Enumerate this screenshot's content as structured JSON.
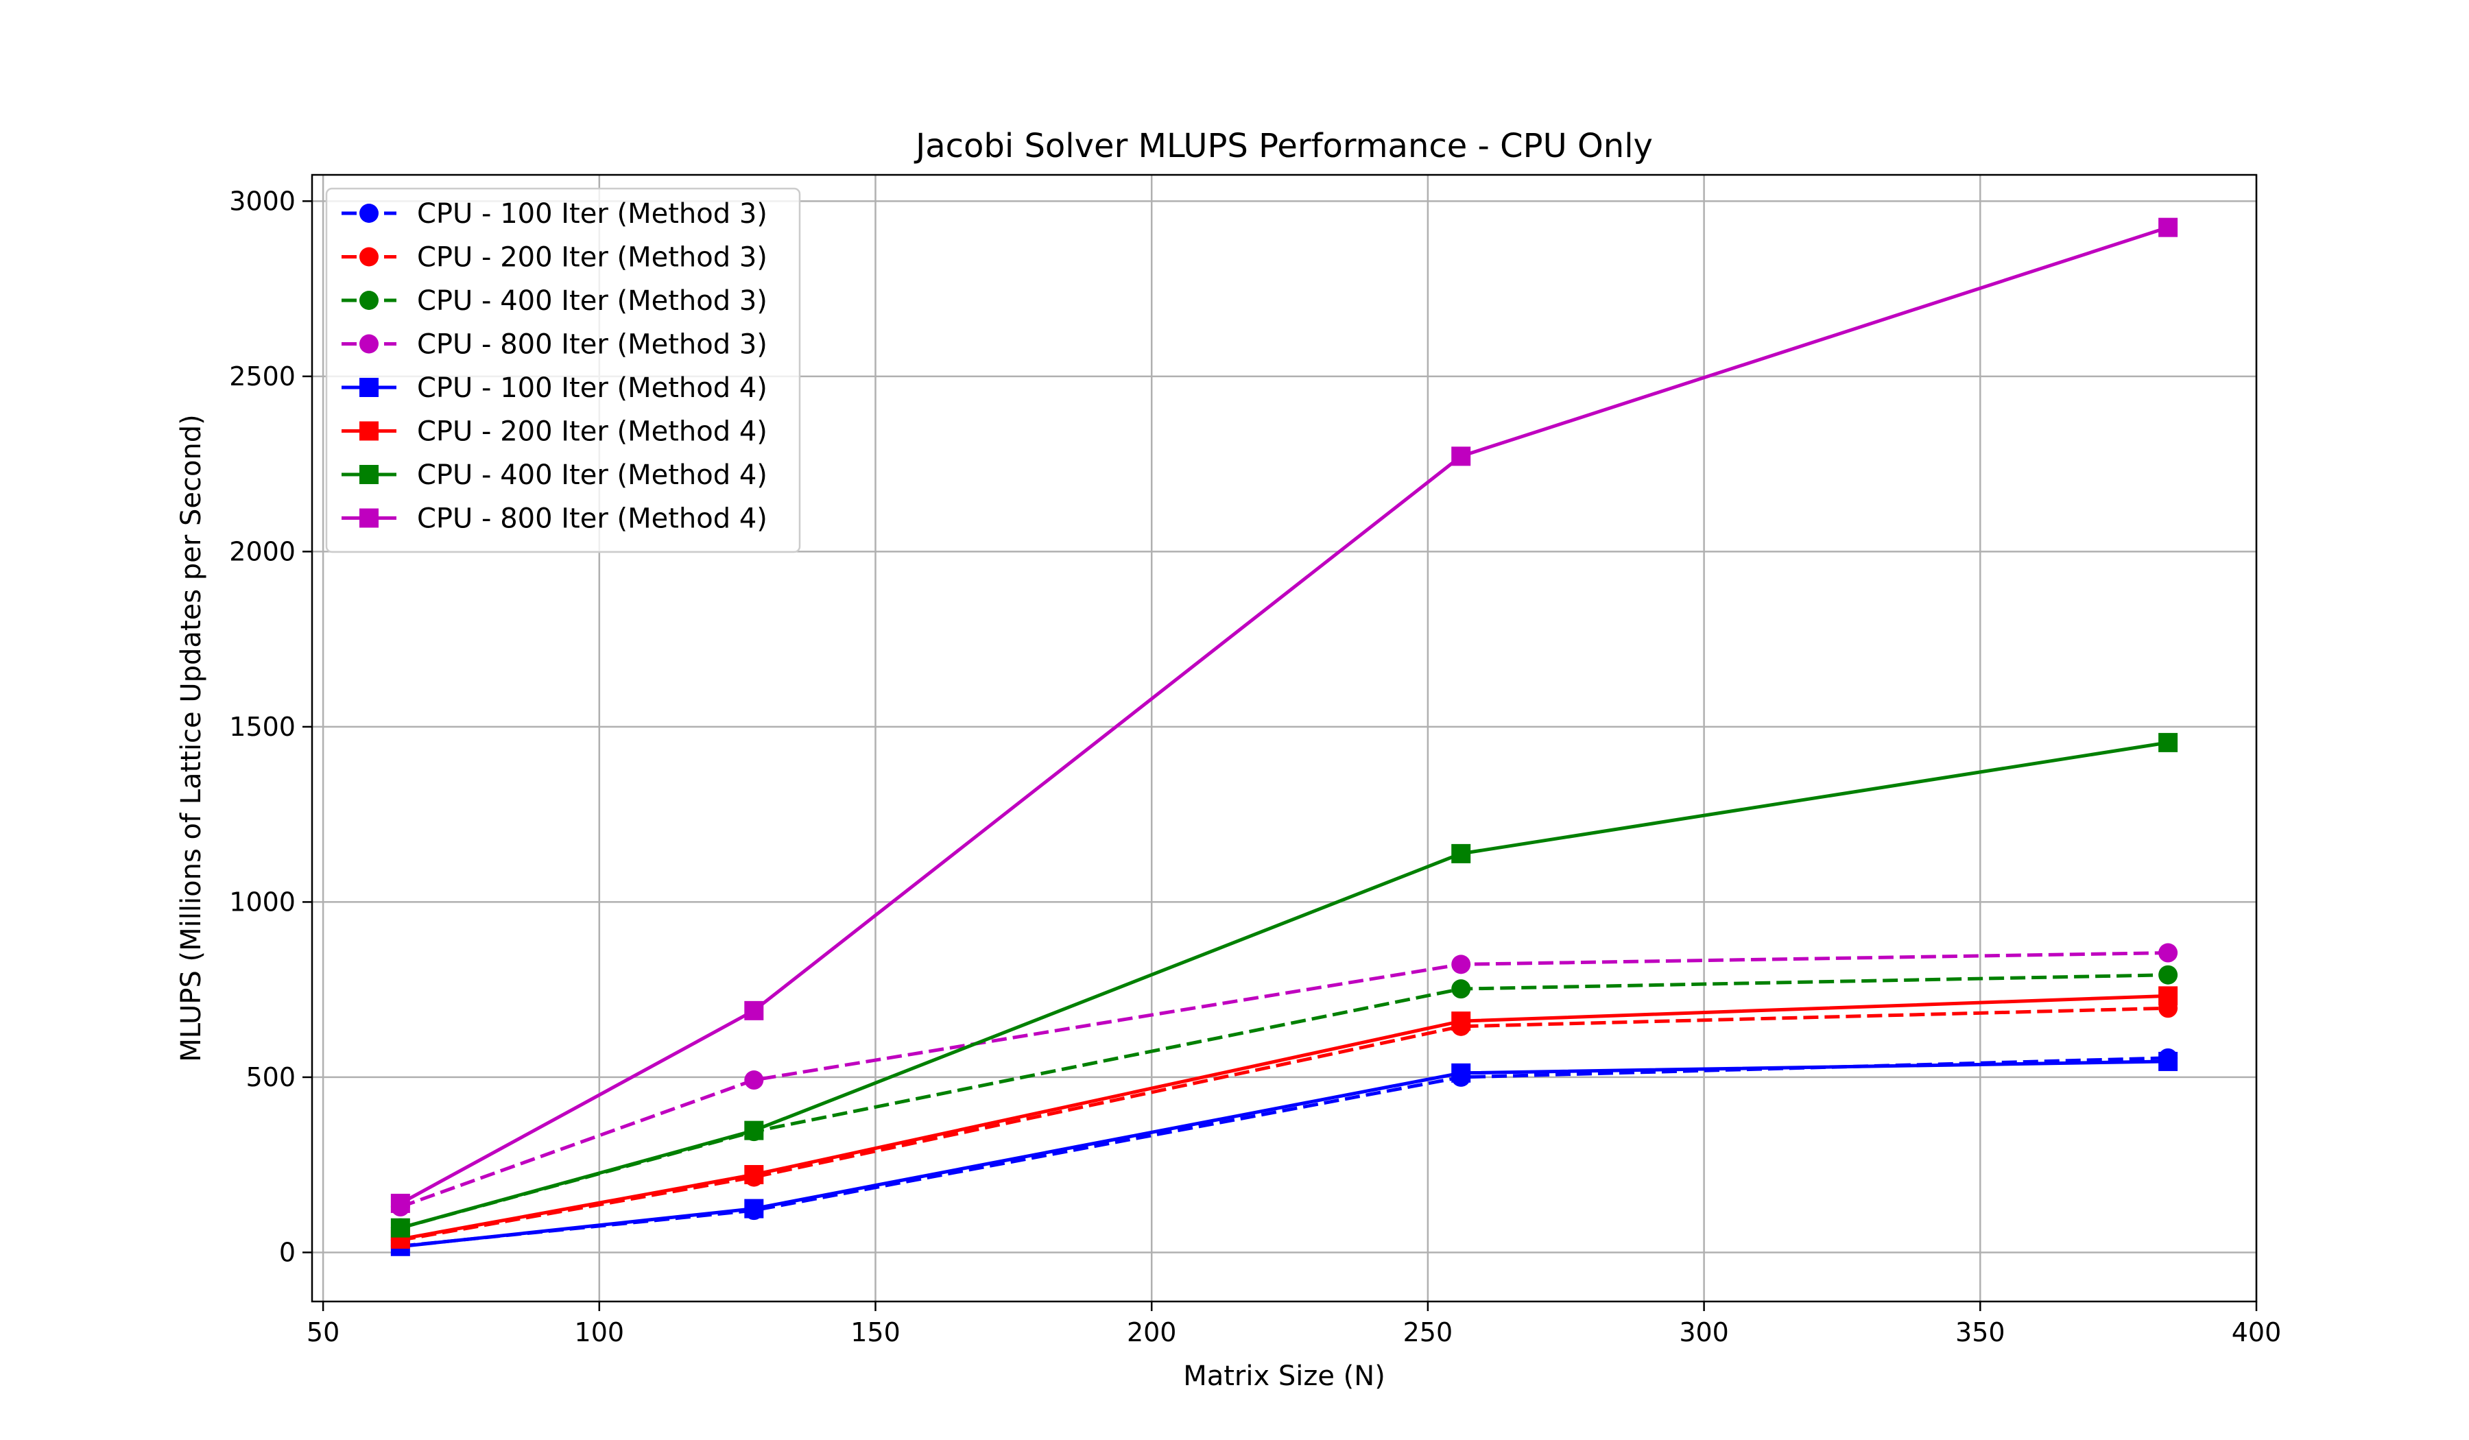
{
  "chart_data": {
    "type": "line",
    "title": "Jacobi Solver MLUPS Performance - CPU Only",
    "xlabel": "Matrix Size (N)",
    "ylabel": "MLUPS (Millions of Lattice Updates per Second)",
    "xlim": [
      48,
      400
    ],
    "ylim": [
      -140,
      3075
    ],
    "xticks": [
      50,
      100,
      150,
      200,
      250,
      300,
      350,
      400
    ],
    "yticks": [
      0,
      500,
      1000,
      1500,
      2000,
      2500,
      3000
    ],
    "grid": true,
    "legend_position": "top-left",
    "x": [
      64,
      128,
      256,
      384
    ],
    "series": [
      {
        "name": "CPU - 100 Iter (Method 3)",
        "color": "#0000ff",
        "marker": "circle",
        "line_style": "dashed",
        "values": [
          18,
          120,
          500,
          555
        ]
      },
      {
        "name": "CPU - 200 Iter (Method 3)",
        "color": "#ff0000",
        "marker": "circle",
        "line_style": "dashed",
        "values": [
          35,
          215,
          645,
          697
        ]
      },
      {
        "name": "CPU - 400 Iter (Method 3)",
        "color": "#008000",
        "marker": "circle",
        "line_style": "dashed",
        "values": [
          70,
          345,
          752,
          792
        ]
      },
      {
        "name": "CPU - 800 Iter (Method 3)",
        "color": "#bf00bf",
        "marker": "circle",
        "line_style": "dashed",
        "values": [
          130,
          492,
          822,
          855
        ]
      },
      {
        "name": "CPU - 100 Iter (Method 4)",
        "color": "#0000ff",
        "marker": "square",
        "line_style": "solid",
        "values": [
          17,
          125,
          512,
          545
        ]
      },
      {
        "name": "CPU - 200 Iter (Method 4)",
        "color": "#ff0000",
        "marker": "square",
        "line_style": "solid",
        "values": [
          38,
          222,
          660,
          732
        ]
      },
      {
        "name": "CPU - 400 Iter (Method 4)",
        "color": "#008000",
        "marker": "square",
        "line_style": "solid",
        "values": [
          70,
          348,
          1138,
          1455
        ]
      },
      {
        "name": "CPU - 800 Iter (Method 4)",
        "color": "#bf00bf",
        "marker": "square",
        "line_style": "solid",
        "values": [
          140,
          690,
          2272,
          2925
        ]
      }
    ]
  }
}
